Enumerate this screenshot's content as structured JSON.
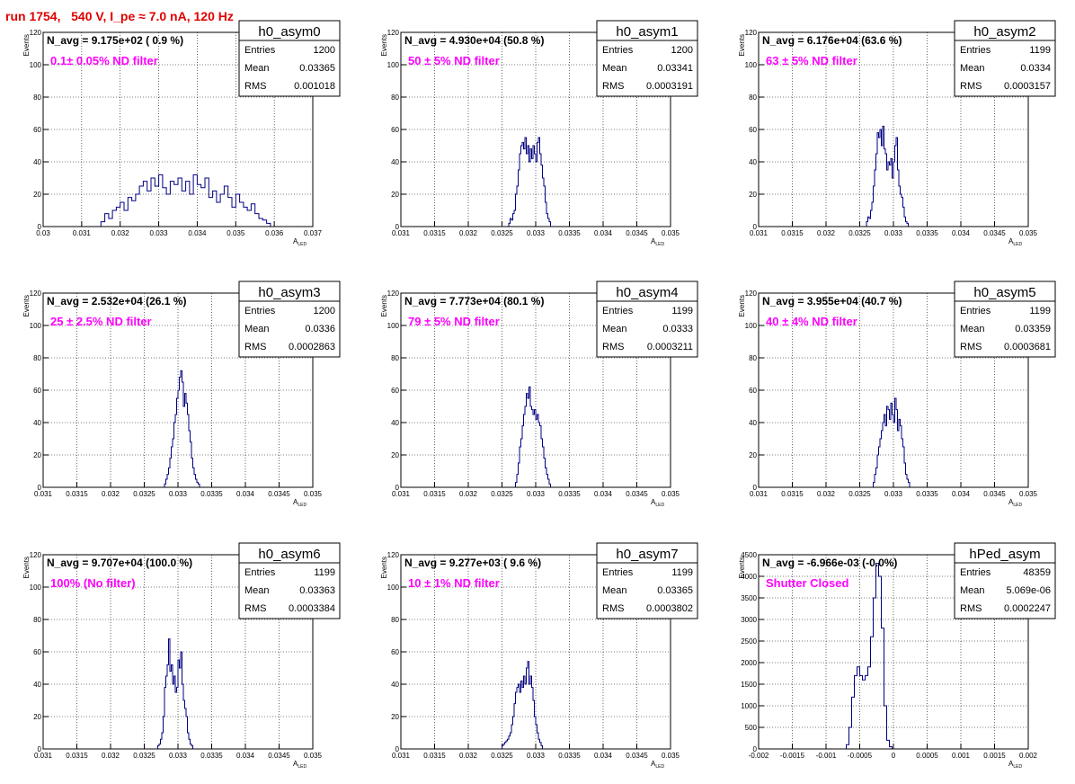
{
  "title": "run 1754,   540 V, I_pe ≈ 7.0 nA, 120 Hz",
  "chart_data": [
    {
      "type": "bar",
      "name": "h0_asym0",
      "navg_text": "N_avg = 9.175e+02 ( 0.9 %)",
      "filter_text": "0.1± 0.05% ND filter",
      "stats": {
        "entries": "1200",
        "mean": "0.03365",
        "rms": "0.001018"
      },
      "xlim": [
        0.03,
        0.037
      ],
      "ylim": [
        0,
        120
      ],
      "xticks": [
        "0.03",
        "0.031",
        "0.032",
        "0.033",
        "0.034",
        "0.035",
        "0.036",
        "0.037"
      ],
      "yticks": [
        "0",
        "20",
        "40",
        "60",
        "80",
        "100",
        "120"
      ],
      "xlabel": "A_LED",
      "ylabel": "Events",
      "x_start": 0.0315,
      "bin_width": 0.0001,
      "values": [
        3,
        8,
        5,
        10,
        12,
        15,
        10,
        18,
        16,
        20,
        25,
        28,
        22,
        30,
        25,
        32,
        24,
        20,
        28,
        26,
        30,
        22,
        28,
        20,
        32,
        26,
        24,
        30,
        18,
        22,
        15,
        20,
        25,
        18,
        12,
        20,
        15,
        12,
        10,
        14,
        8,
        5,
        4,
        2
      ]
    },
    {
      "type": "bar",
      "name": "h0_asym1",
      "navg_text": "N_avg = 4.930e+04 (50.8 %)",
      "filter_text": "50 ± 5% ND filter",
      "stats": {
        "entries": "1200",
        "mean": "0.03341",
        "rms": "0.0003191"
      },
      "xlim": [
        0.031,
        0.035
      ],
      "ylim": [
        0,
        120
      ],
      "xticks": [
        "0.031",
        "0.0315",
        "0.032",
        "0.0325",
        "0.033",
        "0.0335",
        "0.034",
        "0.0345",
        "0.035"
      ],
      "yticks": [
        "0",
        "20",
        "40",
        "60",
        "80",
        "100",
        "120"
      ],
      "xlabel": "A_LED",
      "ylabel": "Events",
      "x_start": 0.0326,
      "bin_width": 2e-05,
      "values": [
        2,
        5,
        4,
        8,
        10,
        20,
        25,
        35,
        45,
        50,
        52,
        48,
        55,
        45,
        50,
        40,
        48,
        42,
        50,
        45,
        40,
        52,
        55,
        45,
        38,
        30,
        25,
        15,
        8,
        5,
        3
      ]
    },
    {
      "type": "bar",
      "name": "h0_asym2",
      "navg_text": "N_avg = 6.176e+04 (63.6 %)",
      "filter_text": "63 ± 5% ND filter",
      "stats": {
        "entries": "1199",
        "mean": "0.0334",
        "rms": "0.0003157"
      },
      "xlim": [
        0.031,
        0.035
      ],
      "ylim": [
        0,
        120
      ],
      "xticks": [
        "0.031",
        "0.0315",
        "0.032",
        "0.0325",
        "0.033",
        "0.0335",
        "0.034",
        "0.0345",
        "0.035"
      ],
      "yticks": [
        "0",
        "20",
        "40",
        "60",
        "80",
        "100",
        "120"
      ],
      "xlabel": "A_LED",
      "ylabel": "Events",
      "x_start": 0.0326,
      "bin_width": 2e-05,
      "values": [
        3,
        6,
        5,
        10,
        15,
        25,
        35,
        45,
        58,
        55,
        60,
        50,
        62,
        48,
        45,
        35,
        40,
        38,
        42,
        30,
        40,
        50,
        55,
        35,
        25,
        20,
        18,
        12,
        6,
        3,
        2
      ]
    },
    {
      "type": "bar",
      "name": "h0_asym3",
      "navg_text": "N_avg = 2.532e+04 (26.1 %)",
      "filter_text": "25 ± 2.5% ND filter",
      "stats": {
        "entries": "1200",
        "mean": "0.0336",
        "rms": "0.0002863"
      },
      "xlim": [
        0.031,
        0.035
      ],
      "ylim": [
        0,
        120
      ],
      "xticks": [
        "0.031",
        "0.0315",
        "0.032",
        "0.0325",
        "0.033",
        "0.0335",
        "0.034",
        "0.0345",
        "0.035"
      ],
      "yticks": [
        "0",
        "20",
        "40",
        "60",
        "80",
        "100",
        "120"
      ],
      "xlabel": "A_LED",
      "ylabel": "Events",
      "x_start": 0.0328,
      "bin_width": 2e-05,
      "values": [
        2,
        5,
        8,
        12,
        18,
        25,
        30,
        40,
        45,
        55,
        60,
        68,
        72,
        65,
        50,
        58,
        52,
        45,
        35,
        28,
        18,
        12,
        8,
        5,
        3,
        2
      ]
    },
    {
      "type": "bar",
      "name": "h0_asym4",
      "navg_text": "N_avg = 7.773e+04 (80.1 %)",
      "filter_text": "79 ± 5% ND filter",
      "stats": {
        "entries": "1199",
        "mean": "0.0333",
        "rms": "0.0003211"
      },
      "xlim": [
        0.031,
        0.035
      ],
      "ylim": [
        0,
        120
      ],
      "xticks": [
        "0.031",
        "0.0315",
        "0.032",
        "0.0325",
        "0.033",
        "0.0335",
        "0.034",
        "0.0345",
        "0.035"
      ],
      "yticks": [
        "0",
        "20",
        "40",
        "60",
        "80",
        "100",
        "120"
      ],
      "xlabel": "A_LED",
      "ylabel": "Events",
      "x_start": 0.0327,
      "bin_width": 2e-05,
      "values": [
        3,
        8,
        15,
        25,
        30,
        38,
        45,
        50,
        58,
        55,
        62,
        50,
        48,
        45,
        48,
        42,
        45,
        40,
        38,
        30,
        25,
        18,
        12,
        8,
        5,
        2
      ]
    },
    {
      "type": "bar",
      "name": "h0_asym5",
      "navg_text": "N_avg = 3.955e+04 (40.7 %)",
      "filter_text": "40 ± 4% ND filter",
      "stats": {
        "entries": "1199",
        "mean": "0.03359",
        "rms": "0.0003681"
      },
      "xlim": [
        0.031,
        0.035
      ],
      "ylim": [
        0,
        120
      ],
      "xticks": [
        "0.031",
        "0.0315",
        "0.032",
        "0.0325",
        "0.033",
        "0.0335",
        "0.034",
        "0.0345",
        "0.035"
      ],
      "yticks": [
        "0",
        "20",
        "40",
        "60",
        "80",
        "100",
        "120"
      ],
      "xlabel": "A_LED",
      "ylabel": "Events",
      "x_start": 0.0327,
      "bin_width": 2e-05,
      "values": [
        3,
        8,
        12,
        20,
        25,
        30,
        35,
        40,
        45,
        38,
        50,
        48,
        42,
        52,
        45,
        40,
        55,
        48,
        35,
        42,
        38,
        30,
        25,
        15,
        8,
        5,
        3
      ]
    },
    {
      "type": "bar",
      "name": "h0_asym6",
      "navg_text": "N_avg = 9.707e+04 (100.0 %)",
      "filter_text": "100% (No filter)",
      "stats": {
        "entries": "1199",
        "mean": "0.03363",
        "rms": "0.0003384"
      },
      "xlim": [
        0.031,
        0.035
      ],
      "ylim": [
        0,
        120
      ],
      "xticks": [
        "0.031",
        "0.0315",
        "0.032",
        "0.0325",
        "0.033",
        "0.0335",
        "0.034",
        "0.0345",
        "0.035"
      ],
      "yticks": [
        "0",
        "20",
        "40",
        "60",
        "80",
        "100",
        "120"
      ],
      "xlabel": "A_LED",
      "ylabel": "Events",
      "x_start": 0.0327,
      "bin_width": 2e-05,
      "values": [
        2,
        3,
        6,
        10,
        20,
        38,
        45,
        52,
        68,
        48,
        52,
        40,
        45,
        35,
        38,
        55,
        50,
        60,
        40,
        30,
        25,
        20,
        10,
        6,
        3,
        2
      ]
    },
    {
      "type": "bar",
      "name": "h0_asym7",
      "navg_text": "N_avg = 9.277e+03 ( 9.6 %)",
      "filter_text": "10 ± 1% ND filter",
      "stats": {
        "entries": "1199",
        "mean": "0.03365",
        "rms": "0.0003802"
      },
      "xlim": [
        0.031,
        0.035
      ],
      "ylim": [
        0,
        120
      ],
      "xticks": [
        "0.031",
        "0.0315",
        "0.032",
        "0.0325",
        "0.033",
        "0.0335",
        "0.034",
        "0.0345",
        "0.035"
      ],
      "yticks": [
        "0",
        "20",
        "40",
        "60",
        "80",
        "100",
        "120"
      ],
      "xlabel": "A_LED",
      "ylabel": "Events",
      "x_start": 0.0325,
      "bin_width": 2e-05,
      "values": [
        2,
        3,
        4,
        5,
        6,
        8,
        10,
        15,
        20,
        28,
        35,
        38,
        40,
        35,
        42,
        38,
        45,
        40,
        50,
        54,
        40,
        45,
        38,
        30,
        20,
        15,
        10,
        6,
        4,
        2
      ]
    },
    {
      "type": "bar",
      "name": "hPed_asym",
      "navg_text": "N_avg = -6.966e-03 (-0.0%)",
      "filter_text": "Shutter Closed",
      "stats": {
        "entries": "48359",
        "mean": "5.069e-06",
        "rms": "0.0002247"
      },
      "xlim": [
        -0.002,
        0.002
      ],
      "ylim": [
        0,
        4500
      ],
      "xticks": [
        "-0.002",
        "-0.0015",
        "-0.001",
        "-0.0005",
        "0",
        "0.0005",
        "0.001",
        "0.0015",
        "0.002"
      ],
      "yticks": [
        "0",
        "500",
        "1000",
        "1500",
        "2000",
        "2500",
        "3000",
        "3500",
        "4000",
        "4500"
      ],
      "xlabel": "A_LED",
      "ylabel": "Events",
      "x_start": -0.0007,
      "bin_width": 4e-05,
      "values": [
        100,
        500,
        1200,
        1700,
        1900,
        1700,
        1600,
        1700,
        1900,
        2600,
        3500,
        4300,
        4000,
        2800,
        1000,
        200,
        50
      ]
    }
  ]
}
